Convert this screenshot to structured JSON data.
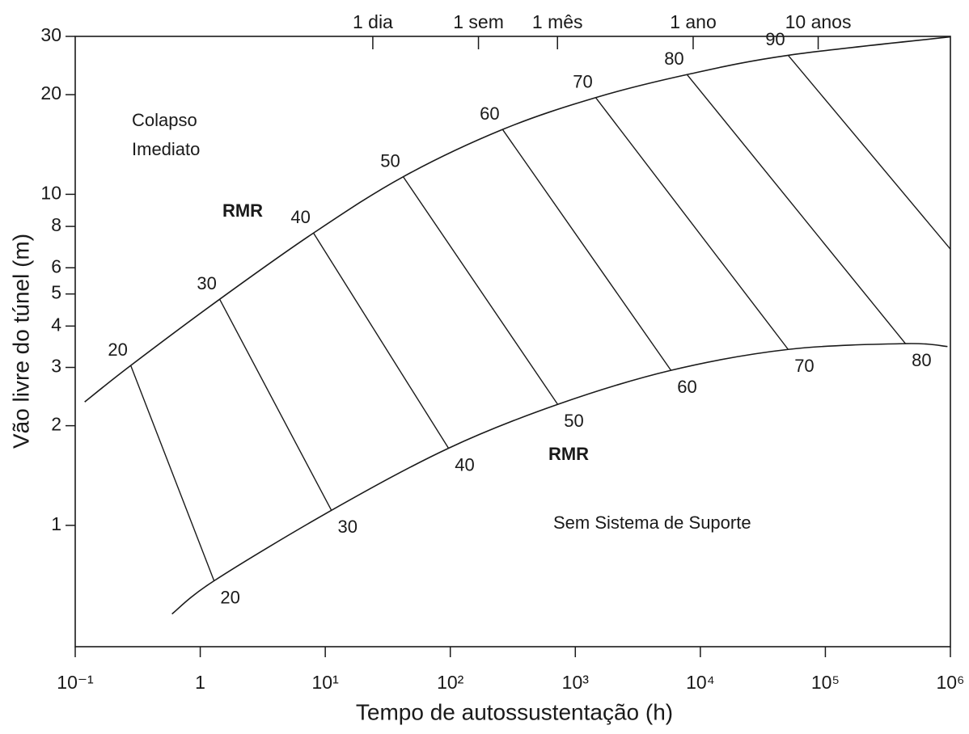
{
  "chart_data": {
    "type": "stand-up-time",
    "x_label": "Tempo de autossustentação (h)",
    "y_label": "Vão livre do túnel (m)",
    "log_x": true,
    "log_y": true,
    "xlim": [
      0.1,
      1000000
    ],
    "ylim": [
      0.43,
      30
    ],
    "xticks": [
      {
        "value": 0.1,
        "label": "10⁻¹"
      },
      1,
      {
        "value": 10,
        "label": "10¹"
      },
      {
        "value": 100,
        "label": "10²"
      },
      {
        "value": 1000,
        "label": "10³"
      },
      {
        "value": 10000,
        "label": "10⁴"
      },
      {
        "value": 100000,
        "label": "10⁵"
      },
      {
        "value": 1000000,
        "label": "10⁶"
      }
    ],
    "yticks": [
      1,
      2,
      3,
      4,
      5,
      6,
      8,
      10,
      20,
      30
    ],
    "x2ticks": [
      {
        "value": 24,
        "label": "1 dia"
      },
      {
        "value": 168,
        "label": "1 sem"
      },
      {
        "value": 720,
        "label": "1 mês"
      },
      {
        "value": 8760,
        "label": "1 ano"
      },
      {
        "value": 87600,
        "label": "10 anos"
      }
    ],
    "color": "#1a1a1a",
    "boundaries": [
      {
        "label": "RMR",
        "x": [
          0.119,
          0.278,
          1.43,
          8.05,
          42,
          262,
          1455,
          7830,
          50400,
          1000000
        ],
        "y": [
          2.36,
          3.04,
          4.82,
          7.64,
          11.3,
          15.7,
          19.6,
          23.0,
          26.3,
          29.9
        ]
      },
      {
        "label": "RMR",
        "x": [
          0.594,
          1.29,
          11.2,
          96.8,
          723,
          5820,
          50400,
          437000,
          948000
        ],
        "y": [
          0.54,
          0.68,
          1.11,
          1.71,
          2.32,
          2.94,
          3.4,
          3.54,
          3.47
        ]
      }
    ],
    "rmr_lines": [
      {
        "x": [
          0.278,
          1.29
        ],
        "y": [
          3.04,
          0.68
        ],
        "labels": [
          20,
          20
        ]
      },
      {
        "x": [
          1.43,
          11.2
        ],
        "y": [
          4.82,
          1.11
        ],
        "labels": [
          30,
          30
        ]
      },
      {
        "x": [
          8.05,
          96.8
        ],
        "y": [
          7.64,
          1.71
        ],
        "labels": [
          40,
          40
        ]
      },
      {
        "x": [
          42,
          723
        ],
        "y": [
          11.3,
          2.32
        ],
        "labels": [
          50,
          50
        ]
      },
      {
        "x": [
          262,
          5820
        ],
        "y": [
          15.7,
          2.94
        ],
        "labels": [
          60,
          60
        ]
      },
      {
        "x": [
          1455,
          50400
        ],
        "y": [
          19.6,
          3.4
        ],
        "labels": [
          70,
          70
        ]
      },
      {
        "x": [
          7830,
          437000
        ],
        "y": [
          23.0,
          3.54
        ],
        "labels": [
          80,
          80
        ]
      },
      {
        "x": [
          50400,
          1000000
        ],
        "y": [
          26.3,
          6.83
        ],
        "labels": [
          90,
          null
        ]
      }
    ],
    "annotations": [
      "Colapso",
      "Imediato",
      "Sem Sistema de Suporte"
    ]
  }
}
